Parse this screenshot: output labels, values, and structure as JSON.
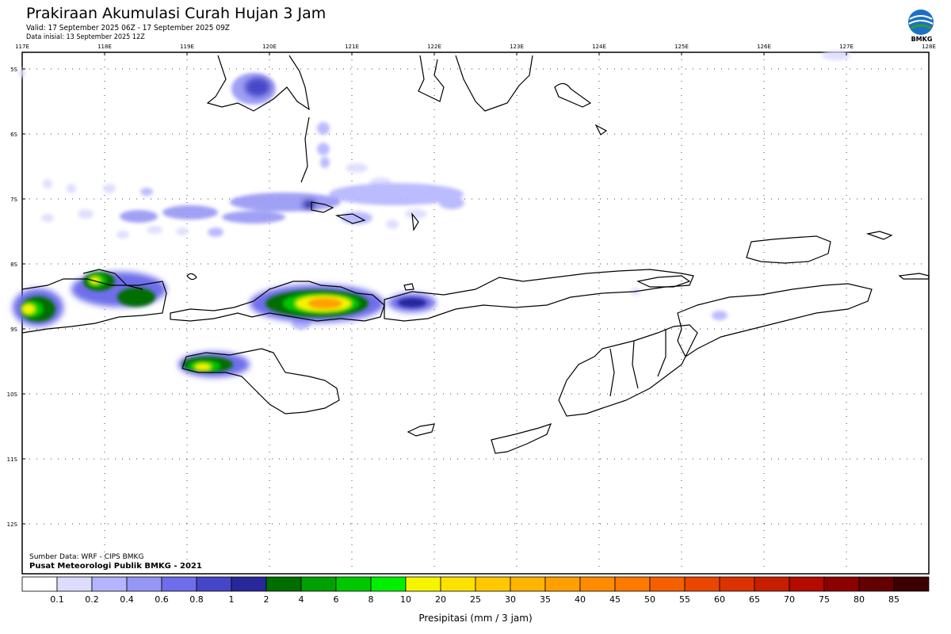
{
  "title": "Prakiraan Akumulasi Curah Hujan 3 Jam",
  "valid": "Valid: 17 September 2025 06Z - 17 September 2025 09Z",
  "init": "Data inisial: 13 September 2025 12Z",
  "logo_text": "BMKG",
  "source_line1": "Sumber Data: WRF - CIPS BMKG",
  "source_line2": "Pusat Meteorologi Publik BMKG - 2021",
  "lon_labels": [
    "117E",
    "118E",
    "119E",
    "120E",
    "121E",
    "122E",
    "123E",
    "124E",
    "125E",
    "126E",
    "127E",
    "128E"
  ],
  "lat_labels": [
    "5S",
    "6S",
    "7S",
    "8S",
    "9S",
    "10S",
    "11S",
    "12S"
  ],
  "colorbar": {
    "title": "Presipitasi (mm / 3 jam)",
    "labels": [
      "0.1",
      "0.2",
      "0.4",
      "0.6",
      "0.8",
      "1",
      "2",
      "4",
      "6",
      "8",
      "10",
      "20",
      "25",
      "30",
      "35",
      "40",
      "45",
      "50",
      "55",
      "60",
      "65",
      "70",
      "75",
      "80",
      "85"
    ],
    "colors": [
      "#ffffff",
      "#dcdcff",
      "#b4b4ff",
      "#9696f5",
      "#6e6eeb",
      "#4646c8",
      "#28289b",
      "#006e00",
      "#00a000",
      "#00c800",
      "#00f000",
      "#f5f500",
      "#ffe100",
      "#ffc800",
      "#ffb400",
      "#ffa000",
      "#ff8c00",
      "#ff7800",
      "#f55f00",
      "#eb4600",
      "#dc3200",
      "#c81e00",
      "#b40a00",
      "#8c0000",
      "#640000",
      "#3c0000"
    ]
  }
}
